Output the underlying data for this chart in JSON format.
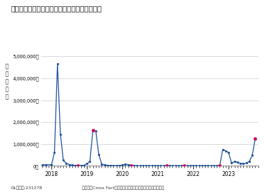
{
  "title": "インフルエンザ治療薬　推計処方患者数の推移",
  "ylabel_chars": [
    "推",
    "計",
    "患",
    "者",
    "数"
  ],
  "footer_left": "DLコード:231278",
  "footer_right": "出典：「Cross Fact」（株式会社インテージリアルワールド）",
  "ylim": [
    0,
    5400000
  ],
  "yticks": [
    0,
    1000000,
    2000000,
    3000000,
    4000000,
    5000000
  ],
  "ytick_labels": [
    "0人",
    "1,000,000人",
    "2,000,000人",
    "3,000,000人",
    "4,000,000人",
    "5,000,000人"
  ],
  "line_color": "#1a4f9f",
  "highlight_color": "#cc0055",
  "bg_color": "#ffffff",
  "months_data": [
    [
      2017.75,
      50000,
      false
    ],
    [
      2017.833,
      50000,
      false
    ],
    [
      2018.0,
      55000,
      false
    ],
    [
      2018.083,
      620000,
      false
    ],
    [
      2018.167,
      4650000,
      false
    ],
    [
      2018.25,
      1450000,
      false
    ],
    [
      2018.333,
      250000,
      false
    ],
    [
      2018.417,
      120000,
      false
    ],
    [
      2018.5,
      60000,
      false
    ],
    [
      2018.583,
      35000,
      false
    ],
    [
      2018.667,
      20000,
      false
    ],
    [
      2018.75,
      18000,
      true
    ],
    [
      2018.833,
      18000,
      false
    ],
    [
      2018.917,
      28000,
      false
    ],
    [
      2019.0,
      100000,
      false
    ],
    [
      2019.083,
      200000,
      false
    ],
    [
      2019.167,
      1620000,
      true
    ],
    [
      2019.25,
      1580000,
      false
    ],
    [
      2019.333,
      520000,
      false
    ],
    [
      2019.417,
      80000,
      false
    ],
    [
      2019.5,
      45000,
      false
    ],
    [
      2019.583,
      25000,
      false
    ],
    [
      2019.667,
      15000,
      false
    ],
    [
      2019.75,
      12000,
      false
    ],
    [
      2019.833,
      12000,
      false
    ],
    [
      2019.917,
      18000,
      false
    ],
    [
      2020.0,
      30000,
      false
    ],
    [
      2020.083,
      75000,
      false
    ],
    [
      2020.167,
      55000,
      false
    ],
    [
      2020.25,
      28000,
      true
    ],
    [
      2020.333,
      15000,
      false
    ],
    [
      2020.417,
      8000,
      false
    ],
    [
      2020.5,
      5000,
      false
    ],
    [
      2020.583,
      5000,
      false
    ],
    [
      2020.667,
      5000,
      false
    ],
    [
      2020.75,
      5000,
      false
    ],
    [
      2020.833,
      5000,
      false
    ],
    [
      2020.917,
      5000,
      false
    ],
    [
      2021.0,
      5000,
      false
    ],
    [
      2021.083,
      5000,
      false
    ],
    [
      2021.167,
      5000,
      false
    ],
    [
      2021.25,
      5000,
      true
    ],
    [
      2021.333,
      5000,
      false
    ],
    [
      2021.417,
      5000,
      false
    ],
    [
      2021.5,
      5000,
      false
    ],
    [
      2021.583,
      5000,
      false
    ],
    [
      2021.667,
      5000,
      false
    ],
    [
      2021.75,
      5000,
      true
    ],
    [
      2021.833,
      5000,
      false
    ],
    [
      2021.917,
      5000,
      false
    ],
    [
      2022.0,
      5000,
      false
    ],
    [
      2022.083,
      5000,
      false
    ],
    [
      2022.167,
      5000,
      false
    ],
    [
      2022.25,
      5000,
      false
    ],
    [
      2022.333,
      5000,
      false
    ],
    [
      2022.417,
      5000,
      false
    ],
    [
      2022.5,
      5000,
      false
    ],
    [
      2022.583,
      5000,
      false
    ],
    [
      2022.667,
      5000,
      false
    ],
    [
      2022.75,
      5000,
      true
    ],
    [
      2022.833,
      750000,
      false
    ],
    [
      2022.917,
      680000,
      false
    ],
    [
      2023.0,
      600000,
      false
    ],
    [
      2023.083,
      130000,
      false
    ],
    [
      2023.167,
      200000,
      false
    ],
    [
      2023.25,
      155000,
      false
    ],
    [
      2023.333,
      120000,
      false
    ],
    [
      2023.417,
      100000,
      false
    ],
    [
      2023.5,
      130000,
      false
    ],
    [
      2023.583,
      200000,
      false
    ],
    [
      2023.667,
      480000,
      false
    ],
    [
      2023.75,
      1230000,
      true
    ]
  ],
  "xmin": 2017.7,
  "xmax": 2023.85,
  "year_ticks": [
    2018,
    2019,
    2020,
    2021,
    2022,
    2023
  ]
}
